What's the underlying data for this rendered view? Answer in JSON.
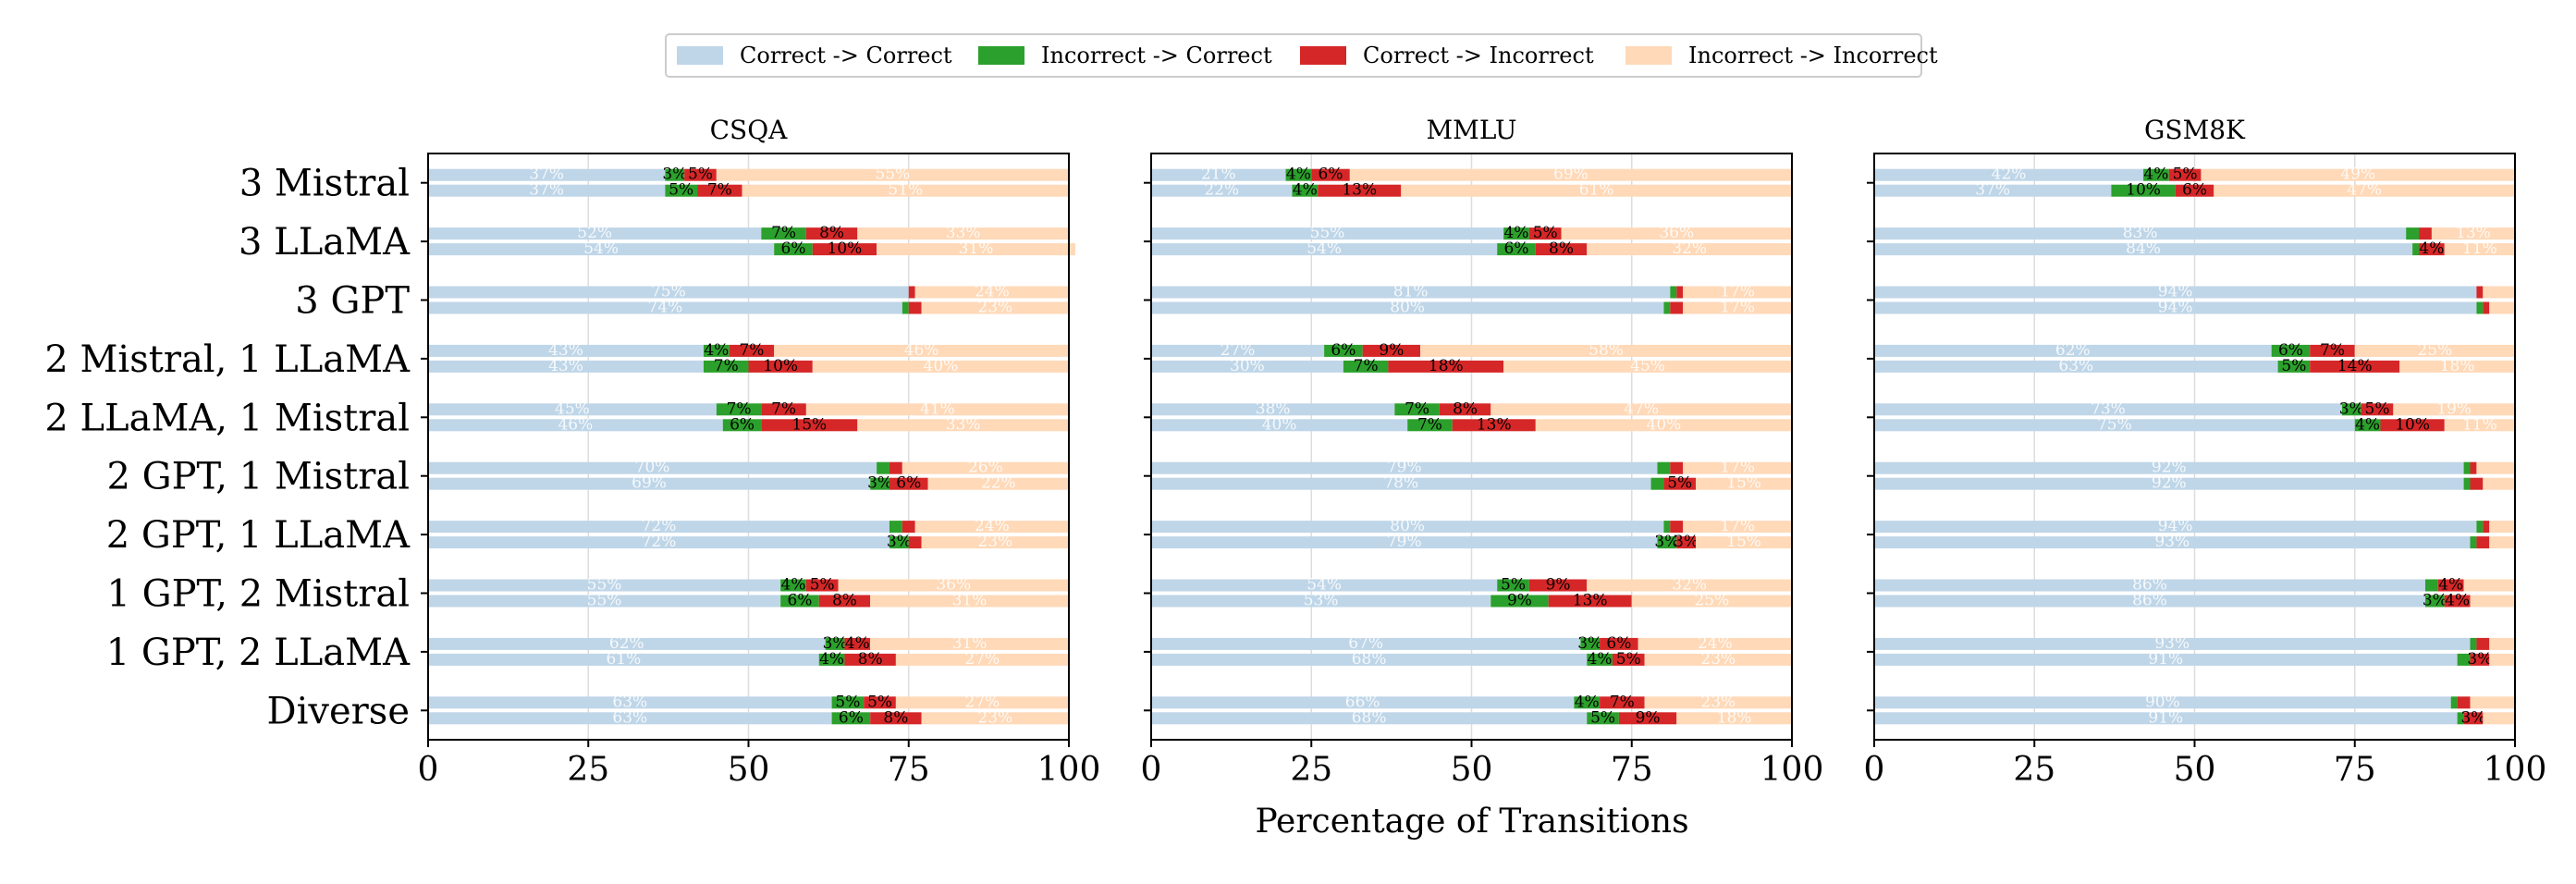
{
  "colors": {
    "cc": "#bfd6e8",
    "ic": "#2ca02c",
    "ci": "#d62728",
    "ii": "#ffd9b8",
    "grid": "#dddddd",
    "axis": "#000000",
    "inner_label_light": "#ffffff",
    "inner_label_dark": "#000000"
  },
  "legend": {
    "items": [
      {
        "key": "cc",
        "label": "Correct -> Correct"
      },
      {
        "key": "ic",
        "label": "Incorrect -> Correct"
      },
      {
        "key": "ci",
        "label": "Correct -> Incorrect"
      },
      {
        "key": "ii",
        "label": "Incorrect -> Incorrect"
      }
    ]
  },
  "chart_data": {
    "type": "bar",
    "orientation": "horizontal-stacked",
    "xlabel": "Percentage of Transitions",
    "xlim": [
      0,
      100
    ],
    "xticks": [
      0,
      25,
      50,
      75,
      100
    ],
    "grid": "vertical",
    "legend_position": "top-center",
    "categories": [
      "3 Mistral",
      "3 LLaMA",
      "3 GPT",
      "2 Mistral, 1 LLaMA",
      "2 LLaMA, 1 Mistral",
      "2 GPT, 1 Mistral",
      "2 GPT, 1 LLaMA",
      "1 GPT, 2 Mistral",
      "1 GPT, 2 LLaMA",
      "Diverse"
    ],
    "segment_order": [
      "cc",
      "ic",
      "ci",
      "ii"
    ],
    "panels": [
      {
        "title": "CSQA",
        "rows": [
          [
            [
              37,
              3,
              5,
              55
            ],
            [
              37,
              5,
              7,
              51
            ]
          ],
          [
            [
              52,
              7,
              8,
              33
            ],
            [
              54,
              6,
              10,
              31
            ]
          ],
          [
            [
              75,
              0,
              1,
              24
            ],
            [
              74,
              1,
              2,
              23
            ]
          ],
          [
            [
              43,
              4,
              7,
              46
            ],
            [
              43,
              7,
              10,
              40
            ]
          ],
          [
            [
              45,
              7,
              7,
              41
            ],
            [
              46,
              6,
              15,
              33
            ]
          ],
          [
            [
              70,
              2,
              2,
              26
            ],
            [
              69,
              3,
              6,
              22
            ]
          ],
          [
            [
              72,
              2,
              2,
              24
            ],
            [
              72,
              3,
              2,
              23
            ]
          ],
          [
            [
              55,
              4,
              5,
              36
            ],
            [
              55,
              6,
              8,
              31
            ]
          ],
          [
            [
              62,
              3,
              4,
              31
            ],
            [
              61,
              4,
              8,
              27
            ]
          ],
          [
            [
              63,
              5,
              5,
              27
            ],
            [
              63,
              6,
              8,
              23
            ]
          ]
        ]
      },
      {
        "title": "MMLU",
        "rows": [
          [
            [
              21,
              4,
              6,
              69
            ],
            [
              22,
              4,
              13,
              61
            ]
          ],
          [
            [
              55,
              4,
              5,
              36
            ],
            [
              54,
              6,
              8,
              32
            ]
          ],
          [
            [
              81,
              1,
              1,
              17
            ],
            [
              80,
              1,
              2,
              17
            ]
          ],
          [
            [
              27,
              6,
              9,
              58
            ],
            [
              30,
              7,
              18,
              45
            ]
          ],
          [
            [
              38,
              7,
              8,
              47
            ],
            [
              40,
              7,
              13,
              40
            ]
          ],
          [
            [
              79,
              2,
              2,
              17
            ],
            [
              78,
              2,
              5,
              15
            ]
          ],
          [
            [
              80,
              1,
              2,
              17
            ],
            [
              79,
              3,
              3,
              15
            ]
          ],
          [
            [
              54,
              5,
              9,
              32
            ],
            [
              53,
              9,
              13,
              25
            ]
          ],
          [
            [
              67,
              3,
              6,
              24
            ],
            [
              68,
              4,
              5,
              23
            ]
          ],
          [
            [
              66,
              4,
              7,
              23
            ],
            [
              68,
              5,
              9,
              18
            ]
          ]
        ]
      },
      {
        "title": "GSM8K",
        "rows": [
          [
            [
              42,
              4,
              5,
              49
            ],
            [
              37,
              10,
              6,
              47
            ]
          ],
          [
            [
              83,
              2,
              2,
              13
            ],
            [
              84,
              1,
              4,
              11
            ]
          ],
          [
            [
              94,
              0,
              1,
              5
            ],
            [
              94,
              1,
              1,
              4
            ]
          ],
          [
            [
              62,
              6,
              7,
              25
            ],
            [
              63,
              5,
              14,
              18
            ]
          ],
          [
            [
              73,
              3,
              5,
              19
            ],
            [
              75,
              4,
              10,
              11
            ]
          ],
          [
            [
              92,
              1,
              1,
              6
            ],
            [
              92,
              1,
              2,
              5
            ]
          ],
          [
            [
              94,
              1,
              1,
              4
            ],
            [
              93,
              1,
              2,
              4
            ]
          ],
          [
            [
              86,
              2,
              4,
              8
            ],
            [
              86,
              3,
              4,
              7
            ]
          ],
          [
            [
              93,
              1,
              2,
              4
            ],
            [
              91,
              2,
              3,
              4
            ]
          ],
          [
            [
              90,
              1,
              2,
              7
            ],
            [
              91,
              1,
              3,
              5
            ]
          ]
        ]
      }
    ]
  }
}
